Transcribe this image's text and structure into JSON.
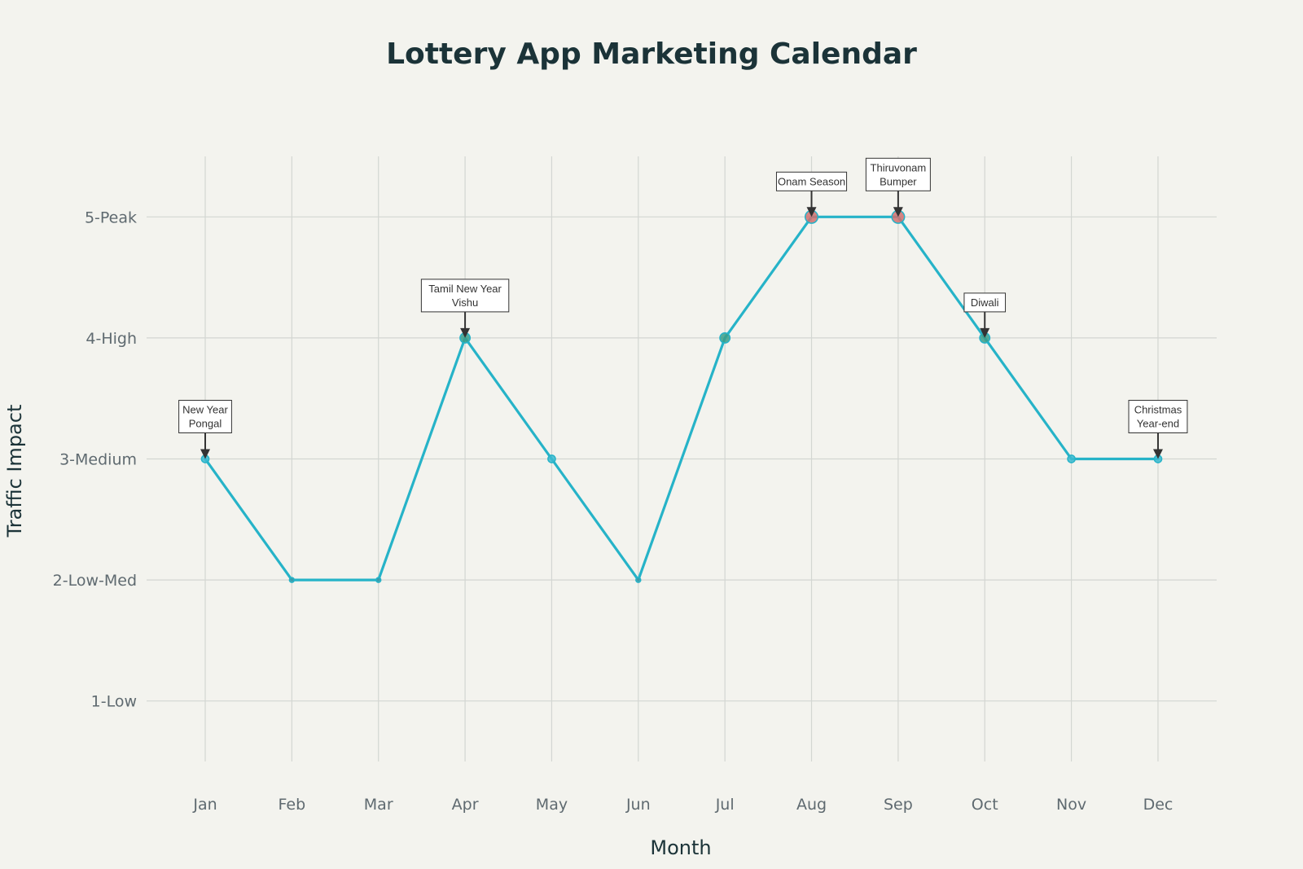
{
  "chart_data": {
    "type": "line",
    "title": "Lottery App Marketing Calendar",
    "xlabel": "Month",
    "ylabel": "Traffic Impact",
    "categories": [
      "Jan",
      "Feb",
      "Mar",
      "Apr",
      "May",
      "Jun",
      "Jul",
      "Aug",
      "Sep",
      "Oct",
      "Nov",
      "Dec"
    ],
    "y_ticks": [
      {
        "value": 1,
        "label": "1-Low"
      },
      {
        "value": 2,
        "label": "2-Low-Med"
      },
      {
        "value": 3,
        "label": "3-Medium"
      },
      {
        "value": 4,
        "label": "4-High"
      },
      {
        "value": 5,
        "label": "5-Peak"
      }
    ],
    "ylim": [
      0.5,
      5.5
    ],
    "grid": true,
    "series": [
      {
        "values": [
          3,
          2,
          2,
          4,
          3,
          2,
          4,
          5,
          5,
          4,
          3,
          3
        ],
        "color": "#26b3c8"
      }
    ],
    "marker_colors": {
      "2": "#3a9aa8",
      "3": "#3cbad0",
      "4": "#3a9e8a",
      "5": "#d0706e"
    },
    "annotations": [
      {
        "month": "Jan",
        "value": 3,
        "lines": [
          "New Year",
          "Pongal"
        ]
      },
      {
        "month": "Apr",
        "value": 4,
        "lines": [
          "Tamil New Year",
          "Vishu"
        ]
      },
      {
        "month": "Aug",
        "value": 5,
        "lines": [
          "Onam Season"
        ]
      },
      {
        "month": "Sep",
        "value": 5,
        "lines": [
          "Thiruvonam",
          "Bumper"
        ]
      },
      {
        "month": "Oct",
        "value": 4,
        "lines": [
          "Diwali"
        ]
      },
      {
        "month": "Dec",
        "value": 3,
        "lines": [
          "Christmas",
          "Year-end"
        ]
      }
    ],
    "colors": {
      "line": "#26b3c8",
      "grid": "#d3d6d2",
      "background": "#f3f3ee",
      "annotation_border": "#333333"
    }
  }
}
